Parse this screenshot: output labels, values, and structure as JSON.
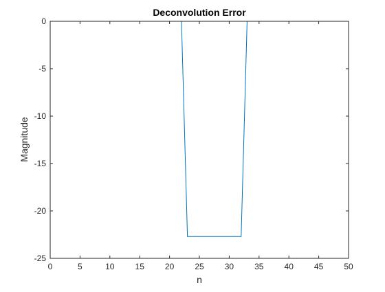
{
  "chart_data": {
    "type": "line",
    "title": "Deconvolution Error",
    "xlabel": "n",
    "ylabel": "Magnitude",
    "xlim": [
      0,
      50
    ],
    "ylim": [
      -25,
      0
    ],
    "xticks": [
      0,
      5,
      10,
      15,
      20,
      25,
      30,
      35,
      40,
      45,
      50
    ],
    "yticks": [
      0,
      -5,
      -10,
      -15,
      -20,
      -25
    ],
    "grid": false,
    "line_color": "#0072BD",
    "series": [
      {
        "x": [
          0,
          1,
          2,
          3,
          4,
          5,
          6,
          7,
          8,
          9,
          10,
          11,
          12,
          13,
          14,
          15,
          16,
          17,
          18,
          19,
          20,
          21,
          22,
          23,
          24,
          25,
          26,
          27,
          28,
          29,
          30,
          31,
          32,
          33,
          34,
          35,
          36,
          37,
          38,
          39,
          40,
          41,
          42,
          43,
          44,
          45,
          46,
          47,
          48,
          49,
          50
        ],
        "values": [
          0,
          0,
          0,
          0,
          0,
          0,
          0,
          0,
          0,
          0,
          0,
          0,
          0,
          0,
          0,
          0,
          0,
          0,
          0,
          0,
          0,
          0,
          0,
          -22.7,
          -22.7,
          -22.7,
          -22.7,
          -22.7,
          -22.7,
          -22.7,
          -22.7,
          -22.7,
          -22.7,
          0,
          0,
          0,
          0,
          0,
          0,
          0,
          0,
          0,
          0,
          0,
          0,
          0,
          0,
          0,
          0,
          0,
          0
        ]
      }
    ]
  }
}
